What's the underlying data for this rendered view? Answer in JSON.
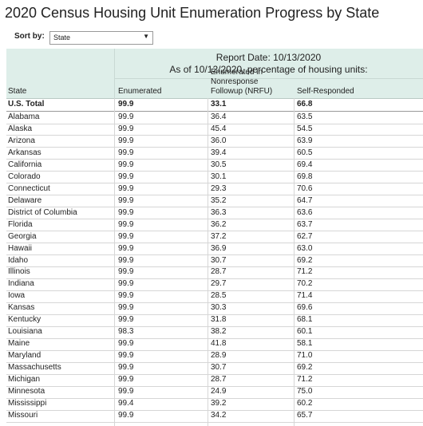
{
  "title": "2020 Census Housing Unit Enumeration Progress by State",
  "sort": {
    "label": "Sort by:",
    "value": "State"
  },
  "table": {
    "report": [
      "Report Date: 10/13/2020",
      "As of 10/12/2020, percentage of housing units:"
    ],
    "columns": [
      "State",
      "Enumerated",
      "Enumerated in Nonresponse Followup (NRFU)",
      "Self-Responded"
    ],
    "total": [
      "U.S. Total",
      "99.9",
      "33.1",
      "66.8"
    ],
    "rows": [
      [
        "Alabama",
        "99.9",
        "36.4",
        "63.5"
      ],
      [
        "Alaska",
        "99.9",
        "45.4",
        "54.5"
      ],
      [
        "Arizona",
        "99.9",
        "36.0",
        "63.9"
      ],
      [
        "Arkansas",
        "99.9",
        "39.4",
        "60.5"
      ],
      [
        "California",
        "99.9",
        "30.5",
        "69.4"
      ],
      [
        "Colorado",
        "99.9",
        "30.1",
        "69.8"
      ],
      [
        "Connecticut",
        "99.9",
        "29.3",
        "70.6"
      ],
      [
        "Delaware",
        "99.9",
        "35.2",
        "64.7"
      ],
      [
        "District of Columbia",
        "99.9",
        "36.3",
        "63.6"
      ],
      [
        "Florida",
        "99.9",
        "36.2",
        "63.7"
      ],
      [
        "Georgia",
        "99.9",
        "37.2",
        "62.7"
      ],
      [
        "Hawaii",
        "99.9",
        "36.9",
        "63.0"
      ],
      [
        "Idaho",
        "99.9",
        "30.7",
        "69.2"
      ],
      [
        "Illinois",
        "99.9",
        "28.7",
        "71.2"
      ],
      [
        "Indiana",
        "99.9",
        "29.7",
        "70.2"
      ],
      [
        "Iowa",
        "99.9",
        "28.5",
        "71.4"
      ],
      [
        "Kansas",
        "99.9",
        "30.3",
        "69.6"
      ],
      [
        "Kentucky",
        "99.9",
        "31.8",
        "68.1"
      ],
      [
        "Louisiana",
        "98.3",
        "38.2",
        "60.1"
      ],
      [
        "Maine",
        "99.9",
        "41.8",
        "58.1"
      ],
      [
        "Maryland",
        "99.9",
        "28.9",
        "71.0"
      ],
      [
        "Massachusetts",
        "99.9",
        "30.7",
        "69.2"
      ],
      [
        "Michigan",
        "99.9",
        "28.7",
        "71.2"
      ],
      [
        "Minnesota",
        "99.9",
        "24.9",
        "75.0"
      ],
      [
        "Mississippi",
        "99.4",
        "39.2",
        "60.2"
      ],
      [
        "Missouri",
        "99.9",
        "34.2",
        "65.7"
      ]
    ]
  }
}
